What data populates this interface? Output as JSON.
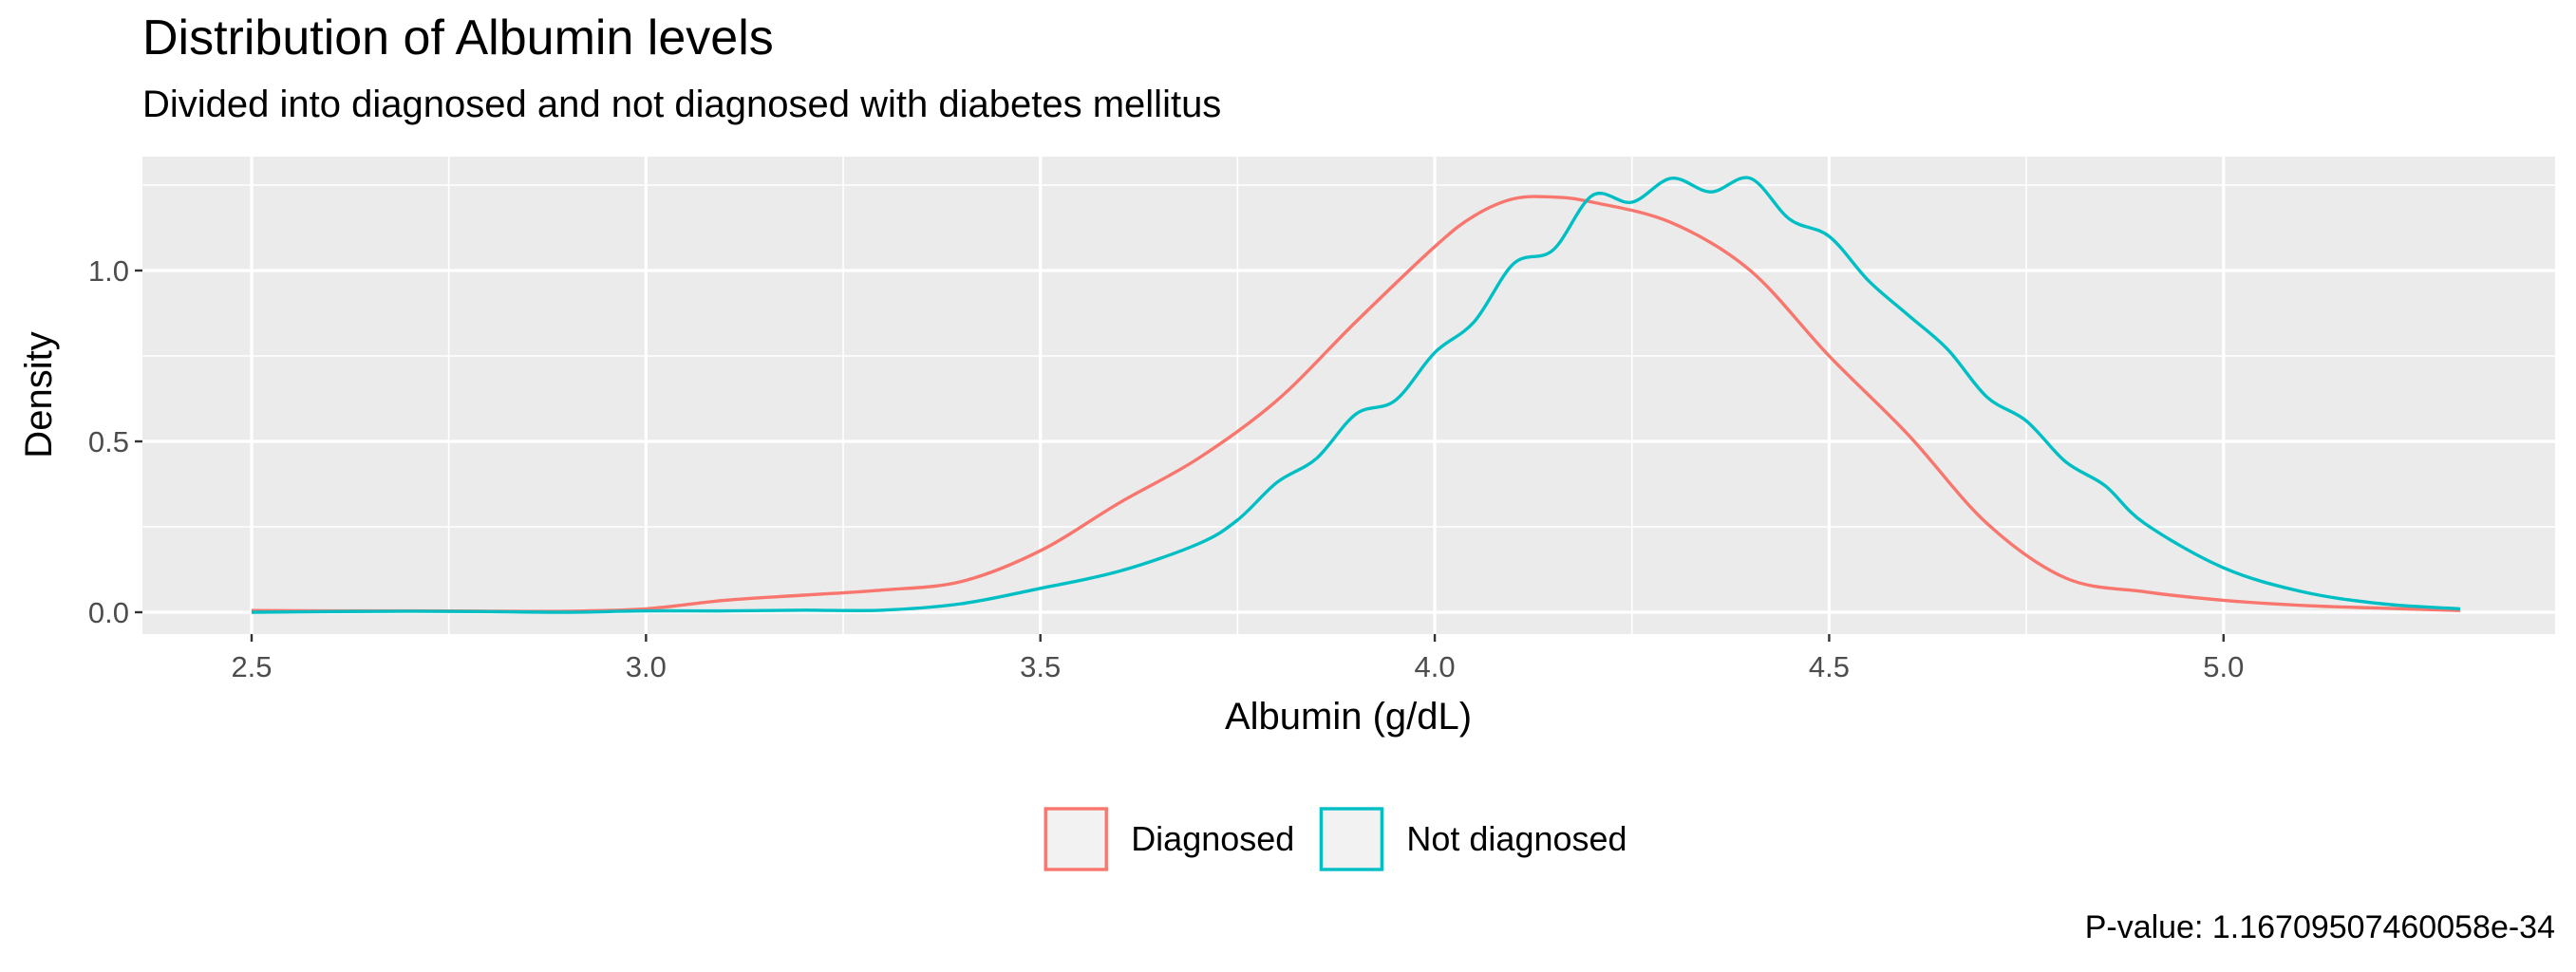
{
  "chart_data": {
    "type": "line",
    "title": "Distribution of Albumin levels",
    "subtitle": "Divided into diagnosed and not diagnosed with diabetes mellitus",
    "xlabel": "Albumin (g/dL)",
    "ylabel": "Density",
    "xlim": [
      2.5,
      5.3
    ],
    "ylim": [
      0,
      1.25
    ],
    "x_ticks": [
      2.5,
      3.0,
      3.5,
      4.0,
      4.5,
      5.0
    ],
    "x_tick_labels": [
      "2.5",
      "3.0",
      "3.5",
      "4.0",
      "4.5",
      "5.0"
    ],
    "y_ticks": [
      0.0,
      0.5,
      1.0
    ],
    "y_tick_labels": [
      "0.0",
      "0.5",
      "1.0"
    ],
    "grid": true,
    "legend_position": "bottom",
    "caption": "P-value: 1.16709507460058e-34",
    "series": [
      {
        "name": "Diagnosed",
        "color": "#F8766D",
        "x": [
          2.5,
          2.6,
          2.7,
          2.8,
          2.9,
          3.0,
          3.1,
          3.2,
          3.3,
          3.4,
          3.5,
          3.6,
          3.7,
          3.8,
          3.9,
          4.0,
          4.05,
          4.1,
          4.15,
          4.2,
          4.3,
          4.4,
          4.5,
          4.6,
          4.7,
          4.8,
          4.9,
          5.0,
          5.1,
          5.2,
          5.3
        ],
        "y": [
          0.005,
          0.004,
          0.004,
          0.003,
          0.003,
          0.01,
          0.035,
          0.05,
          0.065,
          0.09,
          0.18,
          0.32,
          0.45,
          0.62,
          0.85,
          1.07,
          1.16,
          1.21,
          1.215,
          1.2,
          1.14,
          1.0,
          0.75,
          0.52,
          0.26,
          0.1,
          0.06,
          0.035,
          0.02,
          0.012,
          0.005
        ]
      },
      {
        "name": "Not diagnosed",
        "color": "#00BFC4",
        "x": [
          2.5,
          2.6,
          2.7,
          2.8,
          2.9,
          3.0,
          3.1,
          3.2,
          3.3,
          3.4,
          3.5,
          3.6,
          3.7,
          3.75,
          3.8,
          3.85,
          3.9,
          3.95,
          4.0,
          4.05,
          4.1,
          4.15,
          4.2,
          4.25,
          4.3,
          4.35,
          4.4,
          4.45,
          4.5,
          4.55,
          4.6,
          4.65,
          4.7,
          4.75,
          4.8,
          4.85,
          4.9,
          5.0,
          5.1,
          5.2,
          5.3
        ],
        "y": [
          0.0,
          0.002,
          0.003,
          0.002,
          0.0,
          0.004,
          0.004,
          0.006,
          0.006,
          0.025,
          0.07,
          0.12,
          0.2,
          0.27,
          0.38,
          0.45,
          0.58,
          0.62,
          0.76,
          0.85,
          1.02,
          1.06,
          1.22,
          1.2,
          1.27,
          1.23,
          1.27,
          1.15,
          1.1,
          0.97,
          0.87,
          0.77,
          0.63,
          0.56,
          0.44,
          0.37,
          0.26,
          0.13,
          0.06,
          0.025,
          0.01
        ]
      }
    ]
  }
}
